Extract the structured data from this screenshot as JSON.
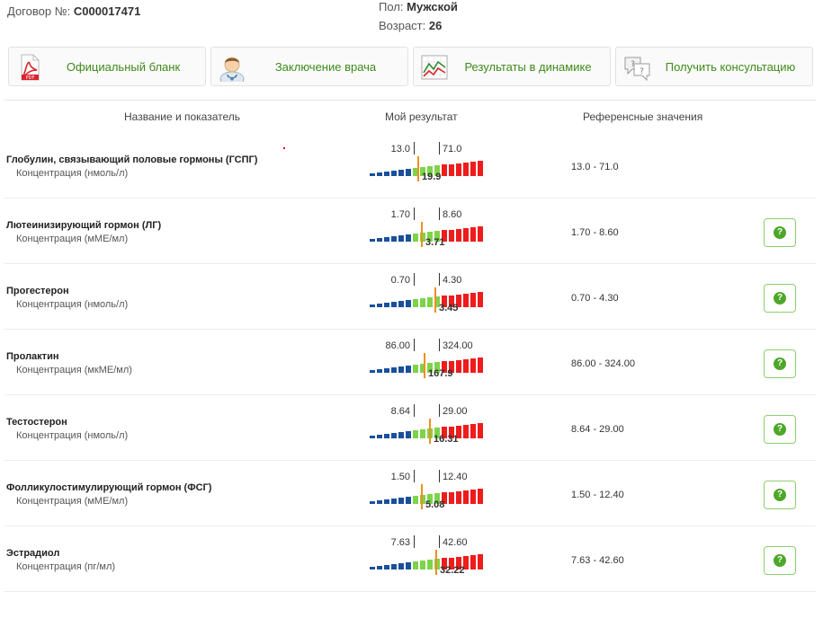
{
  "header": {
    "contract_label": "Договор №:",
    "contract_number": "C000017471",
    "sex_label": "Пол:",
    "sex_value": "Мужской",
    "age_label": "Возраст:",
    "age_value": "26"
  },
  "actions": [
    {
      "label": "Официальный бланк",
      "icon": "pdf-icon"
    },
    {
      "label": "Заключение врача",
      "icon": "doctor-icon"
    },
    {
      "label": "Результаты в динамике",
      "icon": "chart-icon"
    },
    {
      "label": "Получить консультацию",
      "icon": "chat-bubbles-icon"
    }
  ],
  "table_headers": {
    "name": "Название и показатель",
    "result": "Мой результат",
    "reference": "Референсные значения"
  },
  "colors": {
    "low": "#1a4f9c",
    "normal": "#7ed34a",
    "high": "#ee1c1c",
    "marker": "#f0901e",
    "accent_text": "#3f8a1a"
  },
  "rows": [
    {
      "name": "Глобулин, связывающий половые гормоны (ГСПГ)",
      "unit": "Концентрация (нмоль/л)",
      "lo": "13.0",
      "hi": "71.0",
      "value": "19.9",
      "reference": "13.0 - 71.0",
      "marker_fraction": 0.42,
      "help": false
    },
    {
      "name": "Лютеинизирующий гормон (ЛГ)",
      "unit": "Концентрация (мМЕ/мл)",
      "lo": "1.70",
      "hi": "8.60",
      "value": "3.71",
      "reference": "1.70 - 8.60",
      "marker_fraction": 0.45,
      "help": true
    },
    {
      "name": "Прогестерон",
      "unit": "Концентрация (нмоль/л)",
      "lo": "0.70",
      "hi": "4.30",
      "value": "3.45",
      "reference": "0.70 - 4.30",
      "marker_fraction": 0.57,
      "help": true
    },
    {
      "name": "Пролактин",
      "unit": "Концентрация (мкМЕ/мл)",
      "lo": "86.00",
      "hi": "324.00",
      "value": "167.9",
      "reference": "86.00 - 324.00",
      "marker_fraction": 0.48,
      "help": true
    },
    {
      "name": "Тестостерон",
      "unit": "Концентрация (нмоль/л)",
      "lo": "8.64",
      "hi": "29.00",
      "value": "16.31",
      "reference": "8.64 - 29.00",
      "marker_fraction": 0.52,
      "help": true
    },
    {
      "name": "Фолликулостимулирующий гормон (ФСГ)",
      "unit": "Концентрация (мМЕ/мл)",
      "lo": "1.50",
      "hi": "12.40",
      "value": "5.08",
      "reference": "1.50 - 12.40",
      "marker_fraction": 0.45,
      "help": true
    },
    {
      "name": "Эстрадиол",
      "unit": "Концентрация (пг/мл)",
      "lo": "7.63",
      "hi": "42.60",
      "value": "32.22",
      "reference": "7.63 - 42.60",
      "marker_fraction": 0.58,
      "help": true
    }
  ]
}
